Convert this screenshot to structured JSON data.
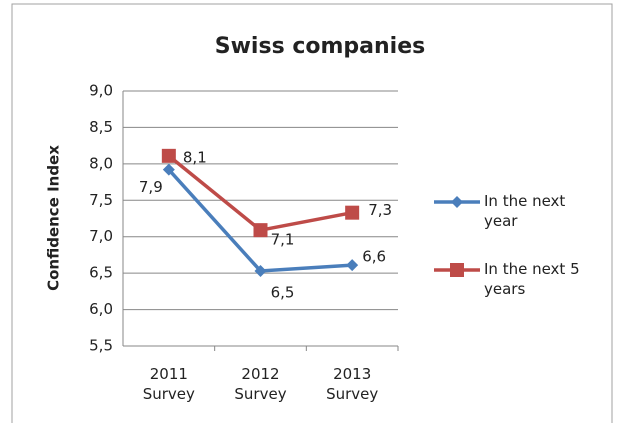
{
  "chart_data": {
    "type": "line",
    "title": "Swiss companies",
    "y_label": "Confidence Index",
    "categories": [
      "2011 Survey",
      "2012 Survey",
      "2013 Survey"
    ],
    "series": [
      {
        "name": "In the next year",
        "color": "#4a7ebb",
        "marker": "diamond",
        "values": [
          7.92,
          6.53,
          6.61
        ],
        "value_labels": [
          "7,9",
          "6,5",
          "6,6"
        ]
      },
      {
        "name": "In the next 5 years",
        "color": "#be4b48",
        "marker": "square",
        "values": [
          8.11,
          7.09,
          7.33
        ],
        "value_labels": [
          "8,1",
          "7,1",
          "7,3"
        ]
      }
    ],
    "ylim": [
      5.5,
      9
    ],
    "yticks": [
      {
        "value": 5.5,
        "label": "5,5"
      },
      {
        "value": 6,
        "label": "6,0"
      },
      {
        "value": 6.5,
        "label": "6,5"
      },
      {
        "value": 7,
        "label": "7,0"
      },
      {
        "value": 7.5,
        "label": "7,5"
      },
      {
        "value": 8,
        "label": "8,0"
      },
      {
        "value": 8.5,
        "label": "8,5"
      },
      {
        "value": 9,
        "label": "9,0"
      }
    ],
    "grid": true,
    "legend": "right"
  }
}
